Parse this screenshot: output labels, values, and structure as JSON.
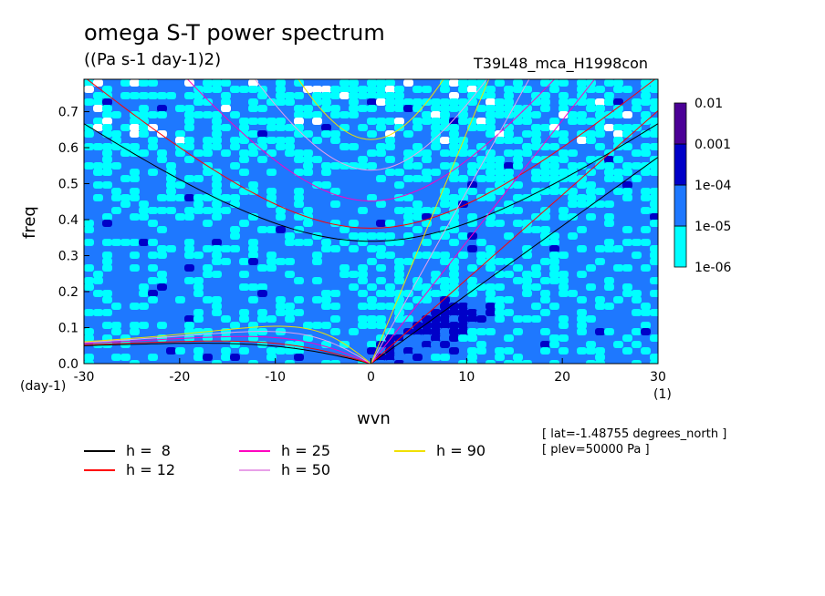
{
  "title": "omega S-T power spectrum",
  "units": "((Pa s-1 day-1)2)",
  "run_name": "T39L48_mca_H1998con",
  "x_unit_left": "(day-1)",
  "x_unit_right": "(1)",
  "info": [
    "[ lat=-1.48755 degrees_north ]",
    "[ plev=50000 Pa ]"
  ],
  "chart_data": {
    "type": "heatmap",
    "xlabel": "wvn",
    "ylabel": "freq",
    "xlim": [
      -30,
      30
    ],
    "ylim": [
      0,
      0.79
    ],
    "xticks": [
      -30,
      -20,
      -10,
      0,
      10,
      20,
      30
    ],
    "xtick_labels": [
      "-30",
      "-20",
      "-10",
      "0",
      "10",
      "20",
      "30"
    ],
    "yticks": [
      0,
      0.1,
      0.2,
      0.3,
      0.4,
      0.5,
      0.6,
      0.7
    ],
    "ytick_labels": [
      "0.0",
      "0.1",
      "0.2",
      "0.3",
      "0.4",
      "0.5",
      "0.6",
      "0.7"
    ],
    "colorbar": {
      "levels": [
        "1e-06",
        "1e-05",
        "1e-04",
        "0.001",
        "0.01"
      ],
      "colors": [
        "#00ffff",
        "#1e78ff",
        "#0000c8",
        "#4b0096"
      ]
    },
    "dispersion_curves": [
      {
        "name": "h =  8",
        "h": 8,
        "color": "#000000"
      },
      {
        "name": "h = 12",
        "h": 12,
        "color": "#ff0000"
      },
      {
        "name": "h = 25",
        "h": 25,
        "color": "#ff00c0"
      },
      {
        "name": "h = 50",
        "h": 50,
        "color": "#e8a0e8"
      },
      {
        "name": "h = 90",
        "h": 90,
        "color": "#f0e000"
      }
    ]
  },
  "legend": [
    {
      "label": "h =  8",
      "color": "#000000"
    },
    {
      "label": "h = 12",
      "color": "#ff0000"
    },
    {
      "label": "h = 25",
      "color": "#ff00c0"
    },
    {
      "label": "h = 50",
      "color": "#e8a0e8"
    },
    {
      "label": "h = 90",
      "color": "#f0e000"
    }
  ]
}
